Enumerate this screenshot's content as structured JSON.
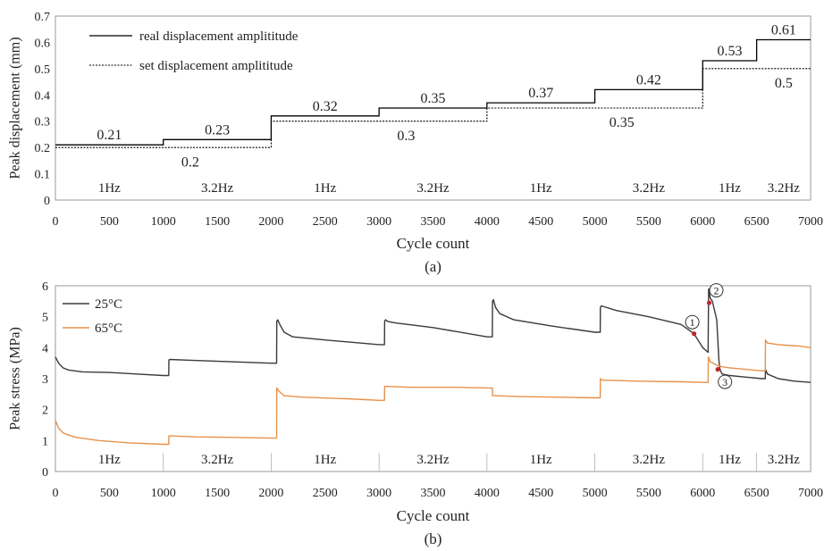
{
  "chart_data": [
    {
      "panel_label": "(a)",
      "type": "line",
      "xlabel": "Cycle count",
      "ylabel": "Peak displacement (mm)",
      "xlim": [
        0,
        7000
      ],
      "ylim": [
        0,
        0.7
      ],
      "x_ticks": [
        "0",
        "500",
        "1000",
        "1500",
        "2000",
        "2500",
        "3000",
        "3500",
        "4000",
        "4500",
        "5000",
        "5500",
        "6000",
        "6500",
        "7000"
      ],
      "y_ticks": [
        "0",
        "0.1",
        "0.2",
        "0.3",
        "0.4",
        "0.5",
        "0.6",
        "0.7"
      ],
      "grid": false,
      "legend_position": "top-left",
      "step_boundaries": [
        0,
        1000,
        2000,
        3000,
        4000,
        5000,
        6000,
        6500,
        7000
      ],
      "frequency_labels": [
        "1Hz",
        "3.2Hz",
        "1Hz",
        "3.2Hz",
        "1Hz",
        "3.2Hz",
        "1Hz",
        "3.2Hz"
      ],
      "series": [
        {
          "name": "real displacement amplititude",
          "style": "solid",
          "color": "#000000",
          "values": [
            0.21,
            0.23,
            0.32,
            0.35,
            0.37,
            0.42,
            0.53,
            0.61
          ]
        },
        {
          "name": "set displacement amplititude",
          "style": "dotted",
          "color": "#000000",
          "values": [
            0.2,
            0.2,
            0.3,
            0.3,
            0.35,
            0.35,
            0.5,
            0.5
          ]
        }
      ],
      "real_value_labels": [
        "0.21",
        "0.23",
        "0.32",
        "0.35",
        "0.37",
        "0.42",
        "0.53",
        "0.61"
      ],
      "set_value_labels": [
        {
          "text": "0.2",
          "x": 1250,
          "y": 0.145
        },
        {
          "text": "0.3",
          "x": 3250,
          "y": 0.245
        },
        {
          "text": "0.35",
          "x": 5250,
          "y": 0.295
        },
        {
          "text": "0.5",
          "x": 6750,
          "y": 0.445
        }
      ]
    },
    {
      "panel_label": "(b)",
      "type": "line",
      "xlabel": "Cycle count",
      "ylabel": "Peak stress (MPa)",
      "xlim": [
        0,
        7000
      ],
      "ylim": [
        0,
        6
      ],
      "x_ticks": [
        "0",
        "500",
        "1000",
        "1500",
        "2000",
        "2500",
        "3000",
        "3500",
        "4000",
        "4500",
        "5000",
        "5500",
        "6000",
        "6500",
        "7000"
      ],
      "y_ticks": [
        "0",
        "1",
        "2",
        "3",
        "4",
        "5",
        "6"
      ],
      "grid": false,
      "legend_position": "top-left",
      "frequency_labels": [
        "1Hz",
        "3.2Hz",
        "1Hz",
        "3.2Hz",
        "1Hz",
        "3.2Hz",
        "1Hz",
        "3.2Hz"
      ],
      "series": [
        {
          "name": "25°C",
          "color": "#3a3a3a",
          "x": [
            0,
            30,
            70,
            120,
            250,
            500,
            750,
            1000,
            1050,
            1052,
            1060,
            1200,
            1600,
            2000,
            2050,
            2052,
            2060,
            2080,
            2120,
            2200,
            2500,
            3000,
            3050,
            3052,
            3060,
            3080,
            3150,
            3500,
            4000,
            4050,
            4052,
            4060,
            4080,
            4120,
            4250,
            4600,
            5000,
            5050,
            5052,
            5060,
            5200,
            5500,
            5800,
            5920,
            6000,
            6050,
            6055,
            6060,
            6070,
            6090,
            6130,
            6150,
            6160,
            6180,
            6250,
            6400,
            6550,
            6580,
            6582,
            6600,
            6700,
            6850,
            7000
          ],
          "y": [
            3.7,
            3.5,
            3.35,
            3.28,
            3.22,
            3.2,
            3.15,
            3.1,
            3.1,
            3.6,
            3.62,
            3.6,
            3.55,
            3.5,
            3.5,
            4.85,
            4.9,
            4.75,
            4.5,
            4.35,
            4.25,
            4.1,
            4.1,
            4.85,
            4.9,
            4.85,
            4.8,
            4.65,
            4.35,
            4.35,
            5.5,
            5.55,
            5.3,
            5.1,
            4.9,
            4.7,
            4.5,
            4.5,
            5.3,
            5.35,
            5.2,
            5.0,
            4.75,
            4.45,
            4.0,
            3.85,
            5.9,
            5.8,
            5.6,
            5.5,
            4.9,
            3.6,
            3.3,
            3.15,
            3.1,
            3.05,
            3.0,
            3.0,
            3.3,
            3.15,
            3.0,
            2.92,
            2.88
          ]
        },
        {
          "name": "65°C",
          "color": "#e8914a",
          "x": [
            0,
            30,
            70,
            120,
            200,
            400,
            700,
            1000,
            1050,
            1052,
            1060,
            1300,
            1700,
            2000,
            2050,
            2052,
            2070,
            2120,
            2300,
            2700,
            3000,
            3050,
            3052,
            3070,
            3300,
            3700,
            4000,
            4050,
            4052,
            4070,
            4300,
            4700,
            5000,
            5050,
            5052,
            5070,
            5400,
            5800,
            6000,
            6050,
            6052,
            6070,
            6150,
            6250,
            6400,
            6550,
            6580,
            6582,
            6600,
            6700,
            6900,
            7000
          ],
          "y": [
            1.65,
            1.4,
            1.25,
            1.18,
            1.1,
            1.0,
            0.92,
            0.88,
            0.88,
            1.15,
            1.15,
            1.12,
            1.1,
            1.08,
            1.08,
            2.7,
            2.6,
            2.45,
            2.4,
            2.35,
            2.3,
            2.3,
            2.75,
            2.75,
            2.72,
            2.72,
            2.7,
            2.7,
            2.45,
            2.45,
            2.42,
            2.4,
            2.38,
            2.38,
            3.0,
            2.95,
            2.92,
            2.9,
            2.88,
            2.88,
            3.7,
            3.55,
            3.4,
            3.35,
            3.3,
            3.25,
            3.25,
            4.25,
            4.15,
            4.1,
            4.05,
            4.0
          ]
        }
      ],
      "annotations": [
        {
          "text": "1",
          "x": 5920,
          "y": 4.45
        },
        {
          "text": "2",
          "x": 6060,
          "y": 5.45
        },
        {
          "text": "3",
          "x": 6140,
          "y": 3.3
        }
      ]
    }
  ]
}
